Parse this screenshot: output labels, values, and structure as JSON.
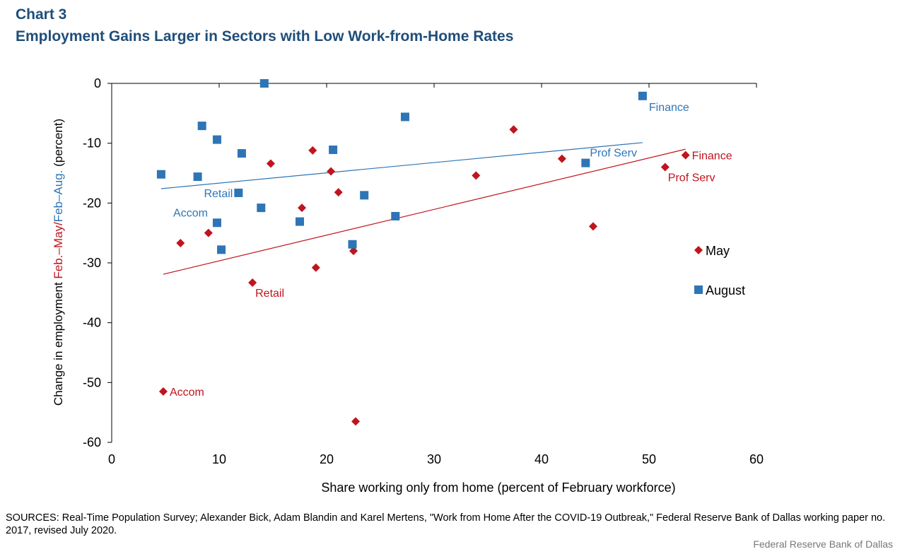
{
  "header": {
    "chart_number": "Chart 3",
    "title": "Employment  Gains Larger in Sectors with Low Work-from-Home  Rates"
  },
  "footer": {
    "sources": "SOURCES:  Real-Time Population Survey; Alexander  Bick, Adam Blandin and Karel Mertens, \"Work from Home After the COVID-19 Outbreak,\" Federal Reserve Bank of Dallas working paper no. 2017, revised  July 2020.",
    "credit": "Federal Reserve  Bank of Dallas"
  },
  "colors": {
    "may": "#c0141e",
    "august": "#2e75b6",
    "title": "#1f4e79"
  },
  "chart_data": {
    "type": "scatter",
    "xlabel": "Share working only  from home  (percent of February workforce)",
    "ylabel_parts": [
      {
        "text": "Change in employment  ",
        "color": "#000000"
      },
      {
        "text": "Feb.–May/",
        "color": "#c0141e"
      },
      {
        "text": "Feb–Aug.",
        "color": "#2e75b6"
      },
      {
        "text": "  (percent)",
        "color": "#000000"
      }
    ],
    "xlim": [
      0,
      60
    ],
    "ylim": [
      -60,
      0
    ],
    "xticks": [
      0,
      10,
      20,
      30,
      40,
      50,
      60
    ],
    "yticks": [
      0,
      -10,
      -20,
      -30,
      -40,
      -50,
      -60
    ],
    "legend_position": "right",
    "series": [
      {
        "name": "May",
        "marker": "diamond",
        "color": "#c0141e",
        "x": [
          4.8,
          6.4,
          9.0,
          13.1,
          14.8,
          17.7,
          18.7,
          19.0,
          20.4,
          21.1,
          22.5,
          22.7,
          33.9,
          37.4,
          41.9,
          44.8,
          51.5,
          53.4
        ],
        "y": [
          -51.5,
          -26.7,
          -25.0,
          -33.3,
          -13.4,
          -20.8,
          -11.2,
          -30.8,
          -14.7,
          -18.2,
          -28.0,
          -56.5,
          -15.4,
          -7.7,
          -12.6,
          -23.9,
          -14.0,
          -12.0
        ],
        "trend": {
          "x": [
            4.8,
            53.4
          ],
          "y": [
            -31.9,
            -11.0
          ]
        },
        "labels": [
          {
            "text": "Accom",
            "x": 4.8,
            "y": -51.5,
            "anchor": "right"
          },
          {
            "text": "Retail",
            "x": 13.1,
            "y": -33.3,
            "anchor": "below"
          },
          {
            "text": "Prof Serv",
            "x": 51.5,
            "y": -14.0,
            "anchor": "below"
          },
          {
            "text": "Finance",
            "x": 53.4,
            "y": -12.0,
            "anchor": "right"
          }
        ]
      },
      {
        "name": "August",
        "marker": "square",
        "color": "#2e75b6",
        "x": [
          4.6,
          8.0,
          8.4,
          9.8,
          9.8,
          10.2,
          11.8,
          12.1,
          13.9,
          14.2,
          17.5,
          20.6,
          22.4,
          23.5,
          26.4,
          27.3,
          44.1,
          49.4
        ],
        "y": [
          -15.2,
          -15.6,
          -7.1,
          -9.4,
          -23.3,
          -27.8,
          -18.3,
          -11.7,
          -20.8,
          0.0,
          -23.1,
          -11.1,
          -26.9,
          -18.7,
          -22.2,
          -5.6,
          -13.3,
          -2.1
        ],
        "trend": {
          "x": [
            4.6,
            49.4
          ],
          "y": [
            -17.6,
            -9.9
          ]
        },
        "labels": [
          {
            "text": "Accom",
            "x": 9.8,
            "y": -23.3,
            "anchor": "above-left"
          },
          {
            "text": "Retail",
            "x": 11.8,
            "y": -18.3,
            "anchor": "left"
          },
          {
            "text": "Prof Serv",
            "x": 44.1,
            "y": -13.3,
            "anchor": "above-right"
          },
          {
            "text": "Finance",
            "x": 49.4,
            "y": -2.1,
            "anchor": "below-right"
          }
        ]
      }
    ]
  }
}
